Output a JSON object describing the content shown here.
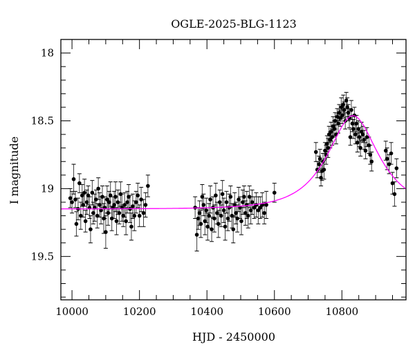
{
  "chart_data": {
    "type": "scatter",
    "title": "OGLE-2025-BLG-1123",
    "xlabel": "HJD - 2450000",
    "ylabel": "I magnitude",
    "xlim": [
      9967,
      10990
    ],
    "ylim": [
      17.9,
      19.82
    ],
    "y_inverted": true,
    "x_major_ticks": [
      10000,
      10200,
      10400,
      10600,
      10800
    ],
    "x_minor_step": 50,
    "y_major_ticks": [
      18,
      18.5,
      19,
      19.5
    ],
    "y_major_labels": [
      "18",
      "18.5",
      "19",
      "19.5"
    ],
    "y_minor_step": 0.1,
    "grid": false,
    "colors": {
      "points": "#000000",
      "errorbars": "#000000",
      "model": "#ff00ff"
    },
    "model": {
      "type": "paczynski",
      "t0": 10833,
      "u0": 0.6,
      "tE": 119,
      "baseline_mag": 19.15
    },
    "points_columns": [
      "hjd",
      "mag",
      "err"
    ],
    "points": [
      [
        9995,
        19.07,
        0.07
      ],
      [
        10000,
        19.1,
        0.08
      ],
      [
        10005,
        18.93,
        0.11
      ],
      [
        10010,
        19.08,
        0.06
      ],
      [
        10013,
        19.26,
        0.09
      ],
      [
        10018,
        19.15,
        0.08
      ],
      [
        10022,
        18.96,
        0.07
      ],
      [
        10026,
        19.2,
        0.1
      ],
      [
        10030,
        19.05,
        0.08
      ],
      [
        10033,
        19.12,
        0.09
      ],
      [
        10037,
        19.03,
        0.1
      ],
      [
        10040,
        19.24,
        0.08
      ],
      [
        10044,
        19.1,
        0.09
      ],
      [
        10048,
        19.05,
        0.07
      ],
      [
        10052,
        19.14,
        0.08
      ],
      [
        10055,
        19.3,
        0.1
      ],
      [
        10060,
        19.03,
        0.09
      ],
      [
        10063,
        19.18,
        0.08
      ],
      [
        10067,
        19.14,
        0.1
      ],
      [
        10071,
        19.08,
        0.07
      ],
      [
        10075,
        19.2,
        0.09
      ],
      [
        10078,
        19.0,
        0.08
      ],
      [
        10082,
        19.12,
        0.09
      ],
      [
        10086,
        19.16,
        0.1
      ],
      [
        10090,
        19.06,
        0.08
      ],
      [
        10094,
        19.22,
        0.11
      ],
      [
        10097,
        19.14,
        0.08
      ],
      [
        10100,
        19.32,
        0.12
      ],
      [
        10104,
        19.08,
        0.1
      ],
      [
        10107,
        19.18,
        0.09
      ],
      [
        10110,
        19.1,
        0.08
      ],
      [
        10114,
        19.05,
        0.1
      ],
      [
        10118,
        19.22,
        0.09
      ],
      [
        10121,
        19.14,
        0.08
      ],
      [
        10125,
        19.12,
        0.1
      ],
      [
        10129,
        19.06,
        0.11
      ],
      [
        10132,
        19.24,
        0.1
      ],
      [
        10136,
        19.1,
        0.09
      ],
      [
        10140,
        19.18,
        0.08
      ],
      [
        10144,
        19.04,
        0.09
      ],
      [
        10148,
        19.14,
        0.1
      ],
      [
        10152,
        19.2,
        0.08
      ],
      [
        10156,
        19.12,
        0.09
      ],
      [
        10160,
        19.24,
        0.1
      ],
      [
        10164,
        19.1,
        0.08
      ],
      [
        10168,
        19.06,
        0.09
      ],
      [
        10172,
        19.15,
        0.1
      ],
      [
        10176,
        19.28,
        0.1
      ],
      [
        10180,
        19.13,
        0.09
      ],
      [
        10185,
        19.2,
        0.11
      ],
      [
        10190,
        19.1,
        0.08
      ],
      [
        10195,
        19.05,
        0.09
      ],
      [
        10200,
        19.2,
        0.08
      ],
      [
        10205,
        19.08,
        0.09
      ],
      [
        10212,
        19.18,
        0.1
      ],
      [
        10218,
        19.12,
        0.09
      ],
      [
        10225,
        18.98,
        0.08
      ],
      [
        10365,
        19.14,
        0.08
      ],
      [
        10370,
        19.34,
        0.12
      ],
      [
        10374,
        19.22,
        0.08
      ],
      [
        10378,
        19.18,
        0.09
      ],
      [
        10382,
        19.26,
        0.1
      ],
      [
        10386,
        19.06,
        0.09
      ],
      [
        10390,
        19.12,
        0.08
      ],
      [
        10394,
        19.24,
        0.1
      ],
      [
        10398,
        19.16,
        0.09
      ],
      [
        10402,
        19.28,
        0.1
      ],
      [
        10406,
        19.2,
        0.09
      ],
      [
        10410,
        19.08,
        0.1
      ],
      [
        10414,
        19.3,
        0.09
      ],
      [
        10418,
        19.14,
        0.08
      ],
      [
        10422,
        19.22,
        0.1
      ],
      [
        10426,
        19.05,
        0.09
      ],
      [
        10430,
        19.18,
        0.08
      ],
      [
        10434,
        19.26,
        0.1
      ],
      [
        10438,
        19.1,
        0.09
      ],
      [
        10442,
        19.2,
        0.08
      ],
      [
        10446,
        19.04,
        0.1
      ],
      [
        10450,
        19.16,
        0.09
      ],
      [
        10454,
        19.28,
        0.1
      ],
      [
        10458,
        19.1,
        0.08
      ],
      [
        10462,
        19.22,
        0.09
      ],
      [
        10466,
        19.14,
        0.1
      ],
      [
        10470,
        19.06,
        0.08
      ],
      [
        10474,
        19.2,
        0.09
      ],
      [
        10478,
        19.3,
        0.1
      ],
      [
        10482,
        19.12,
        0.09
      ],
      [
        10486,
        19.18,
        0.08
      ],
      [
        10490,
        19.22,
        0.1
      ],
      [
        10494,
        19.08,
        0.09
      ],
      [
        10498,
        19.14,
        0.08
      ],
      [
        10502,
        19.24,
        0.1
      ],
      [
        10506,
        19.1,
        0.09
      ],
      [
        10510,
        19.06,
        0.08
      ],
      [
        10514,
        19.18,
        0.09
      ],
      [
        10518,
        19.12,
        0.1
      ],
      [
        10522,
        19.2,
        0.09
      ],
      [
        10526,
        19.06,
        0.08
      ],
      [
        10530,
        19.16,
        0.1
      ],
      [
        10534,
        19.1,
        0.09
      ],
      [
        10540,
        19.14,
        0.08
      ],
      [
        10546,
        19.12,
        0.09
      ],
      [
        10552,
        19.16,
        0.1
      ],
      [
        10558,
        19.14,
        0.08
      ],
      [
        10564,
        19.12,
        0.09
      ],
      [
        10570,
        19.18,
        0.08
      ],
      [
        10576,
        19.12,
        0.1
      ],
      [
        10600,
        19.03,
        0.07
      ],
      [
        10723,
        18.73,
        0.07
      ],
      [
        10727,
        18.86,
        0.06
      ],
      [
        10732,
        18.82,
        0.06
      ],
      [
        10735,
        18.78,
        0.07
      ],
      [
        10738,
        18.92,
        0.06
      ],
      [
        10741,
        18.87,
        0.07
      ],
      [
        10744,
        18.8,
        0.06
      ],
      [
        10747,
        18.86,
        0.07
      ],
      [
        10750,
        18.72,
        0.06
      ],
      [
        10753,
        18.75,
        0.07
      ],
      [
        10756,
        18.67,
        0.06
      ],
      [
        10759,
        18.7,
        0.07
      ],
      [
        10762,
        18.6,
        0.06
      ],
      [
        10765,
        18.64,
        0.06
      ],
      [
        10768,
        18.58,
        0.07
      ],
      [
        10771,
        18.62,
        0.06
      ],
      [
        10774,
        18.54,
        0.07
      ],
      [
        10777,
        18.56,
        0.06
      ],
      [
        10780,
        18.5,
        0.06
      ],
      [
        10783,
        18.6,
        0.07
      ],
      [
        10786,
        18.47,
        0.06
      ],
      [
        10789,
        18.52,
        0.07
      ],
      [
        10792,
        18.44,
        0.06
      ],
      [
        10795,
        18.48,
        0.06
      ],
      [
        10798,
        18.4,
        0.07
      ],
      [
        10801,
        18.46,
        0.06
      ],
      [
        10804,
        18.38,
        0.07
      ],
      [
        10807,
        18.42,
        0.06
      ],
      [
        10810,
        18.5,
        0.06
      ],
      [
        10813,
        18.35,
        0.06
      ],
      [
        10816,
        18.4,
        0.07
      ],
      [
        10819,
        18.44,
        0.06
      ],
      [
        10822,
        18.48,
        0.07
      ],
      [
        10825,
        18.62,
        0.06
      ],
      [
        10828,
        18.42,
        0.07
      ],
      [
        10831,
        18.52,
        0.06
      ],
      [
        10834,
        18.56,
        0.07
      ],
      [
        10837,
        18.46,
        0.06
      ],
      [
        10840,
        18.6,
        0.07
      ],
      [
        10843,
        18.52,
        0.06
      ],
      [
        10846,
        18.66,
        0.07
      ],
      [
        10849,
        18.56,
        0.06
      ],
      [
        10852,
        18.62,
        0.07
      ],
      [
        10855,
        18.7,
        0.06
      ],
      [
        10858,
        18.58,
        0.07
      ],
      [
        10862,
        18.6,
        0.06
      ],
      [
        10866,
        18.64,
        0.07
      ],
      [
        10870,
        18.72,
        0.06
      ],
      [
        10874,
        18.62,
        0.07
      ],
      [
        10880,
        18.68,
        0.06
      ],
      [
        10884,
        18.75,
        0.07
      ],
      [
        10888,
        18.8,
        0.07
      ],
      [
        10930,
        18.72,
        0.07
      ],
      [
        10934,
        18.78,
        0.08
      ],
      [
        10940,
        18.82,
        0.07
      ],
      [
        10946,
        18.74,
        0.08
      ],
      [
        10950,
        18.96,
        0.08
      ],
      [
        10956,
        19.04,
        0.09
      ],
      [
        10962,
        18.85,
        0.07
      ]
    ]
  }
}
